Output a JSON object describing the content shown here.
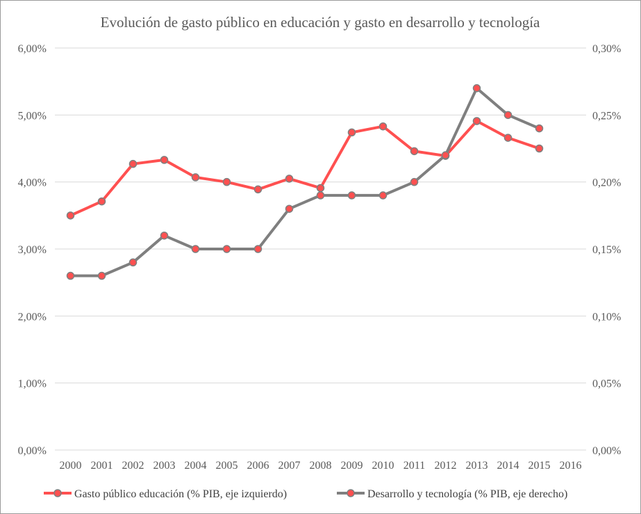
{
  "chart_data": {
    "type": "line",
    "title": "Evolución de gasto público en educación y gasto en desarrollo y tecnología",
    "categories": [
      "2000",
      "2001",
      "2002",
      "2003",
      "2004",
      "2005",
      "2006",
      "2007",
      "2008",
      "2009",
      "2010",
      "2011",
      "2012",
      "2013",
      "2014",
      "2015",
      "2016"
    ],
    "y_left": {
      "ylim": [
        0,
        6
      ],
      "ticks": [
        0,
        1,
        2,
        3,
        4,
        5,
        6
      ],
      "tick_labels": [
        "0,00%",
        "1,00%",
        "2,00%",
        "3,00%",
        "4,00%",
        "5,00%",
        "6,00%"
      ]
    },
    "y_right": {
      "ylim": [
        0,
        0.3
      ],
      "ticks": [
        0,
        0.05,
        0.1,
        0.15,
        0.2,
        0.25,
        0.3
      ],
      "tick_labels": [
        "0,00%",
        "0,05%",
        "0,10%",
        "0,15%",
        "0,20%",
        "0,25%",
        "0,30%"
      ]
    },
    "grid": true,
    "legend_position": "bottom",
    "series": [
      {
        "name": "Gasto público educación (% PIB, eje izquierdo)",
        "axis": "left",
        "color": "#ff5050",
        "marker_color": "#ff5050",
        "values": [
          3.5,
          3.71,
          4.27,
          4.33,
          4.07,
          4.0,
          3.89,
          4.05,
          3.91,
          4.74,
          4.83,
          4.46,
          4.39,
          4.91,
          4.66,
          4.5,
          null
        ]
      },
      {
        "name": "Desarrollo y tecnología (% PIB, eje derecho)",
        "axis": "right",
        "color": "#7f7f7f",
        "marker_color": "#ff5050",
        "values": [
          0.13,
          0.13,
          0.14,
          0.16,
          0.15,
          0.15,
          0.15,
          0.18,
          0.19,
          0.19,
          0.19,
          0.2,
          0.22,
          0.27,
          0.25,
          0.24,
          null
        ]
      }
    ]
  },
  "colors": {
    "grid": "#d9d9d9",
    "text": "#595959"
  }
}
